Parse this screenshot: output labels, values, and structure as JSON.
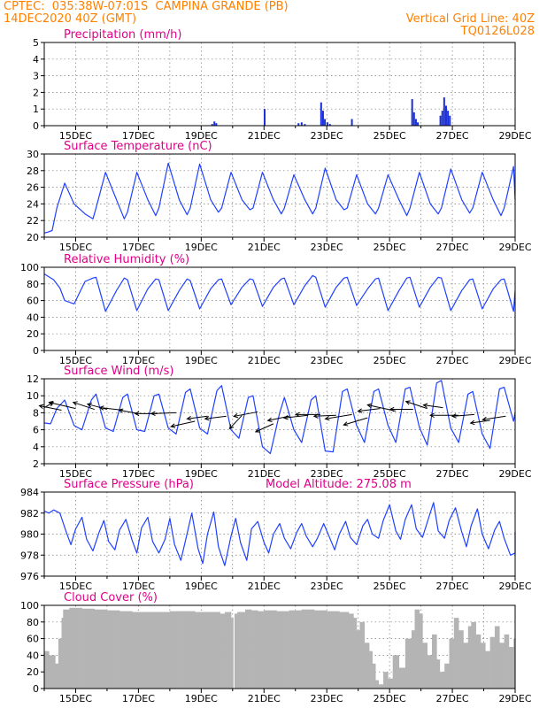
{
  "header": {
    "line1_left": "CPTEC:  035:38W-07:01S  CAMPINA GRANDE (PB)",
    "line2_left": "14DEC2020 40Z (GMT)",
    "line2_right": "Vertical Grid Line: 40Z",
    "line3_right": "TQ0126L028"
  },
  "colors": {
    "header_text": "#ff8000",
    "title_text": "#e0008a",
    "series_line": "#2040ff",
    "bar_fill": "#1a2fd8",
    "cloud_fill": "#b4b4b4",
    "wind_vector": "#000000"
  },
  "date_ticks": [
    "15DEC",
    "17DEC",
    "19DEC",
    "21DEC",
    "23DEC",
    "25DEC",
    "27DEC",
    "29DEC"
  ],
  "chart_data": [
    {
      "id": "precip",
      "type": "bar",
      "title": "Precipitation (mm/h)",
      "ylim": [
        0,
        5
      ],
      "yticks": [
        "0",
        "1",
        "2",
        "3",
        "4",
        "5"
      ],
      "x_days": [
        19.35,
        19.42,
        19.48,
        21.02,
        22.1,
        22.2,
        22.3,
        22.82,
        22.88,
        22.94,
        23.02,
        23.1,
        23.8,
        25.72,
        25.78,
        25.84,
        25.9,
        26.62,
        26.68,
        26.74,
        26.8,
        26.86,
        26.92
      ],
      "values": [
        0.1,
        0.25,
        0.15,
        1.0,
        0.15,
        0.2,
        0.1,
        1.4,
        0.9,
        0.4,
        0.2,
        0.1,
        0.4,
        1.6,
        0.8,
        0.4,
        0.2,
        0.6,
        0.9,
        1.7,
        1.2,
        0.9,
        0.6
      ],
      "grid": true
    },
    {
      "id": "temp",
      "type": "line",
      "title": "Surface Temperature (nC)",
      "ylim": [
        20,
        30
      ],
      "yticks": [
        "20",
        "22",
        "24",
        "26",
        "28",
        "30"
      ],
      "x_days": [
        14.0,
        14.1,
        14.25,
        14.4,
        14.65,
        14.95,
        15.3,
        15.55,
        15.65,
        15.95,
        16.3,
        16.55,
        16.65,
        16.95,
        17.3,
        17.55,
        17.65,
        17.95,
        18.3,
        18.55,
        18.65,
        18.95,
        19.3,
        19.55,
        19.65,
        19.95,
        20.3,
        20.55,
        20.65,
        20.95,
        21.3,
        21.55,
        21.65,
        21.95,
        22.3,
        22.55,
        22.65,
        22.95,
        23.3,
        23.55,
        23.65,
        23.95,
        24.3,
        24.55,
        24.65,
        24.95,
        25.3,
        25.55,
        25.65,
        25.95,
        26.3,
        26.55,
        26.65,
        26.95,
        27.3,
        27.55,
        27.65,
        27.95,
        28.3,
        28.55,
        28.65,
        28.95,
        29.1
      ],
      "values": [
        20.5,
        20.6,
        20.8,
        23.5,
        26.5,
        24.0,
        22.8,
        22.2,
        23.5,
        27.8,
        24.5,
        22.2,
        23.0,
        27.8,
        24.5,
        22.6,
        23.5,
        28.9,
        24.5,
        22.7,
        23.5,
        28.8,
        24.5,
        23.0,
        23.5,
        27.8,
        24.5,
        23.3,
        23.5,
        27.8,
        24.5,
        22.8,
        23.5,
        27.5,
        24.5,
        22.8,
        23.5,
        28.3,
        24.5,
        23.3,
        23.5,
        27.5,
        24.0,
        22.8,
        23.5,
        27.5,
        24.5,
        22.6,
        23.5,
        27.8,
        24.0,
        22.8,
        23.5,
        28.2,
        24.5,
        22.9,
        23.5,
        27.8,
        24.5,
        22.6,
        23.5,
        28.5,
        24.5
      ],
      "grid": true
    },
    {
      "id": "rh",
      "type": "line",
      "title": "Relative Humidity (%)",
      "ylim": [
        0,
        100
      ],
      "yticks": [
        "0",
        "20",
        "40",
        "60",
        "80",
        "100"
      ],
      "x_days": [
        14.0,
        14.3,
        14.5,
        14.65,
        14.95,
        15.3,
        15.55,
        15.65,
        15.95,
        16.3,
        16.55,
        16.65,
        16.95,
        17.3,
        17.55,
        17.65,
        17.95,
        18.3,
        18.55,
        18.65,
        18.95,
        19.3,
        19.55,
        19.65,
        19.95,
        20.3,
        20.55,
        20.65,
        20.95,
        21.3,
        21.55,
        21.65,
        21.95,
        22.3,
        22.55,
        22.65,
        22.95,
        23.3,
        23.55,
        23.65,
        23.95,
        24.3,
        24.55,
        24.65,
        24.95,
        25.3,
        25.55,
        25.65,
        25.95,
        26.3,
        26.55,
        26.65,
        26.95,
        27.3,
        27.55,
        27.65,
        27.95,
        28.3,
        28.55,
        28.65,
        28.95,
        29.1
      ],
      "values": [
        92,
        85,
        75,
        60,
        56,
        83,
        87,
        88,
        47,
        72,
        87,
        85,
        48,
        74,
        86,
        85,
        48,
        72,
        86,
        84,
        50,
        74,
        85,
        86,
        55,
        76,
        86,
        85,
        53,
        76,
        86,
        87,
        55,
        78,
        90,
        88,
        52,
        76,
        87,
        88,
        54,
        74,
        86,
        87,
        48,
        72,
        87,
        88,
        52,
        76,
        88,
        87,
        48,
        72,
        85,
        86,
        50,
        74,
        85,
        86,
        47,
        72
      ],
      "grid": true
    },
    {
      "id": "wind",
      "type": "line",
      "title": "Surface Wind (m/s)",
      "ylim": [
        2,
        12
      ],
      "yticks": [
        "2",
        "4",
        "6",
        "8",
        "10",
        "12"
      ],
      "x_days": [
        14.0,
        14.2,
        14.4,
        14.65,
        14.95,
        15.2,
        15.5,
        15.65,
        15.95,
        16.2,
        16.5,
        16.65,
        16.95,
        17.2,
        17.5,
        17.65,
        17.95,
        18.2,
        18.5,
        18.65,
        18.95,
        19.2,
        19.5,
        19.65,
        19.95,
        20.2,
        20.5,
        20.65,
        20.95,
        21.2,
        21.5,
        21.65,
        21.95,
        22.2,
        22.5,
        22.65,
        22.95,
        23.2,
        23.5,
        23.65,
        23.95,
        24.2,
        24.5,
        24.65,
        24.95,
        25.2,
        25.5,
        25.65,
        25.95,
        26.2,
        26.5,
        26.65,
        26.95,
        27.2,
        27.5,
        27.65,
        27.95,
        28.2,
        28.5,
        28.65,
        28.95,
        29.1
      ],
      "values": [
        6.8,
        6.7,
        8.5,
        9.5,
        6.5,
        6.0,
        9.5,
        10.2,
        6.2,
        5.8,
        9.8,
        10.2,
        6.0,
        5.8,
        10.0,
        10.2,
        6.2,
        5.5,
        10.4,
        10.8,
        6.2,
        5.5,
        10.6,
        11.2,
        6.0,
        5.0,
        9.8,
        10.0,
        4.0,
        3.2,
        8.0,
        9.8,
        6.0,
        4.5,
        9.5,
        10.0,
        3.5,
        3.4,
        10.5,
        10.8,
        6.5,
        4.5,
        10.5,
        10.8,
        6.5,
        4.5,
        10.8,
        11.0,
        6.3,
        4.2,
        11.5,
        11.8,
        6.2,
        4.5,
        10.2,
        10.5,
        5.5,
        3.8,
        10.8,
        11.0,
        7.0,
        8.0
      ],
      "grid": true,
      "vectors": [
        {
          "x_day": 14.0,
          "speed": 8.6,
          "dx": 10,
          "dy": -6
        },
        {
          "x_day": 14.55,
          "speed": 8.3,
          "dx": -25,
          "dy": -5
        },
        {
          "x_day": 15.0,
          "speed": 8.5,
          "dx": -30,
          "dy": -7
        },
        {
          "x_day": 15.6,
          "speed": 8.4,
          "dx": -24,
          "dy": -8
        },
        {
          "x_day": 16.0,
          "speed": 8.4,
          "dx": -22,
          "dy": -6
        },
        {
          "x_day": 16.5,
          "speed": 8.3,
          "dx": -26,
          "dy": -3
        },
        {
          "x_day": 17.0,
          "speed": 7.9,
          "dx": -22,
          "dy": -4
        },
        {
          "x_day": 17.6,
          "speed": 7.9,
          "dx": -25,
          "dy": 0
        },
        {
          "x_day": 18.2,
          "speed": 8.0,
          "dx": -28,
          "dy": 1
        },
        {
          "x_day": 18.8,
          "speed": 7.0,
          "dx": -27,
          "dy": 6
        },
        {
          "x_day": 19.2,
          "speed": 7.6,
          "dx": -23,
          "dy": 3
        },
        {
          "x_day": 19.8,
          "speed": 7.6,
          "dx": -24,
          "dy": 3
        },
        {
          "x_day": 20.3,
          "speed": 7.7,
          "dx": -14,
          "dy": 15
        },
        {
          "x_day": 20.8,
          "speed": 8.1,
          "dx": -27,
          "dy": 5
        },
        {
          "x_day": 21.3,
          "speed": 6.7,
          "dx": -20,
          "dy": 9
        },
        {
          "x_day": 21.8,
          "speed": 7.6,
          "dx": -24,
          "dy": 5
        },
        {
          "x_day": 22.4,
          "speed": 7.7,
          "dx": -27,
          "dy": 3
        },
        {
          "x_day": 22.8,
          "speed": 7.8,
          "dx": -28,
          "dy": 0
        },
        {
          "x_day": 23.3,
          "speed": 7.7,
          "dx": -25,
          "dy": 1
        },
        {
          "x_day": 23.8,
          "speed": 7.8,
          "dx": -30,
          "dy": 5
        },
        {
          "x_day": 24.3,
          "speed": 7.4,
          "dx": -27,
          "dy": 8
        },
        {
          "x_day": 24.7,
          "speed": 8.5,
          "dx": -25,
          "dy": 3
        },
        {
          "x_day": 25.2,
          "speed": 8.2,
          "dx": -32,
          "dy": -7
        },
        {
          "x_day": 25.75,
          "speed": 8.4,
          "dx": -26,
          "dy": 0
        },
        {
          "x_day": 26.2,
          "speed": 8.5,
          "dx": -24,
          "dy": -8
        },
        {
          "x_day": 26.7,
          "speed": 8.6,
          "dx": -22,
          "dy": -3
        },
        {
          "x_day": 27.2,
          "speed": 7.7,
          "dx": -32,
          "dy": 0
        },
        {
          "x_day": 27.7,
          "speed": 7.8,
          "dx": -25,
          "dy": 2
        },
        {
          "x_day": 28.2,
          "speed": 7.1,
          "dx": -22,
          "dy": 3
        },
        {
          "x_day": 28.7,
          "speed": 7.6,
          "dx": -26,
          "dy": 4
        }
      ]
    },
    {
      "id": "pres",
      "type": "line",
      "title": "Surface Pressure (hPa)",
      "annotation": "Model Altitude: 275.08 m",
      "ylim": [
        976,
        984
      ],
      "yticks": [
        "976",
        "978",
        "980",
        "982",
        "984"
      ],
      "x_days": [
        14.0,
        14.15,
        14.3,
        14.5,
        14.7,
        14.85,
        15.0,
        15.2,
        15.35,
        15.55,
        15.75,
        15.9,
        16.05,
        16.25,
        16.4,
        16.6,
        16.8,
        16.95,
        17.1,
        17.3,
        17.45,
        17.65,
        17.85,
        18.0,
        18.15,
        18.35,
        18.5,
        18.7,
        18.9,
        19.05,
        19.2,
        19.4,
        19.55,
        19.75,
        19.95,
        20.1,
        20.25,
        20.45,
        20.6,
        20.8,
        21.0,
        21.15,
        21.3,
        21.5,
        21.65,
        21.85,
        22.05,
        22.2,
        22.35,
        22.55,
        22.7,
        22.9,
        23.1,
        23.25,
        23.4,
        23.6,
        23.75,
        23.95,
        24.15,
        24.3,
        24.45,
        24.65,
        24.8,
        25.0,
        25.2,
        25.35,
        25.5,
        25.7,
        25.85,
        26.05,
        26.25,
        26.4,
        26.55,
        26.75,
        26.9,
        27.1,
        27.3,
        27.45,
        27.6,
        27.8,
        27.95,
        28.15,
        28.35,
        28.5,
        28.65,
        28.85,
        29.0,
        29.1
      ],
      "values": [
        982.2,
        982.0,
        982.3,
        982.0,
        980.2,
        979.0,
        980.5,
        981.6,
        979.5,
        978.4,
        980.2,
        981.3,
        979.3,
        978.5,
        980.4,
        981.4,
        979.4,
        978.2,
        980.6,
        981.6,
        979.3,
        978.2,
        979.5,
        981.5,
        979.0,
        977.5,
        979.4,
        982.0,
        978.6,
        977.2,
        980.0,
        982.1,
        978.8,
        977.0,
        979.8,
        981.5,
        979.2,
        977.5,
        980.5,
        981.2,
        979.2,
        978.2,
        980.0,
        981.0,
        979.6,
        978.6,
        980.2,
        981.0,
        979.8,
        978.8,
        979.6,
        981.0,
        979.6,
        978.5,
        980.0,
        981.2,
        979.7,
        979.0,
        980.8,
        981.4,
        980.0,
        979.6,
        981.3,
        982.8,
        980.3,
        979.5,
        981.4,
        982.8,
        980.5,
        979.7,
        981.6,
        983.0,
        980.3,
        979.6,
        981.3,
        982.5,
        980.2,
        978.8,
        980.8,
        982.4,
        980.0,
        978.6,
        980.4,
        981.2,
        979.6,
        978.0,
        978.2,
        980.2
      ],
      "grid": true
    },
    {
      "id": "cloud",
      "type": "area",
      "title": "Cloud Cover (%)",
      "ylim": [
        0,
        100
      ],
      "yticks": [
        "0",
        "20",
        "40",
        "60",
        "80",
        "100"
      ],
      "x_days": [
        14.0,
        14.15,
        14.35,
        14.45,
        14.55,
        14.6,
        14.8,
        15.2,
        15.6,
        16.0,
        16.4,
        16.8,
        17.2,
        17.6,
        18.0,
        18.4,
        18.8,
        19.2,
        19.6,
        19.75,
        19.95,
        20.02,
        20.06,
        20.15,
        20.4,
        20.6,
        20.8,
        21.0,
        21.4,
        21.8,
        22.2,
        22.6,
        23.0,
        23.4,
        23.7,
        23.85,
        23.95,
        24.05,
        24.2,
        24.35,
        24.45,
        24.55,
        24.65,
        24.8,
        24.95,
        25.1,
        25.3,
        25.5,
        25.7,
        25.8,
        25.95,
        26.05,
        26.2,
        26.35,
        26.5,
        26.6,
        26.75,
        26.9,
        27.05,
        27.2,
        27.35,
        27.5,
        27.6,
        27.75,
        27.9,
        28.05,
        28.2,
        28.35,
        28.5,
        28.65,
        28.8,
        28.95,
        29.1
      ],
      "values": [
        45,
        40,
        30,
        60,
        85,
        95,
        97,
        96,
        95,
        94,
        93,
        92,
        92,
        92,
        93,
        93,
        92,
        92,
        90,
        92,
        85,
        0,
        90,
        92,
        95,
        94,
        93,
        94,
        93,
        94,
        95,
        94,
        93,
        92,
        90,
        85,
        70,
        80,
        55,
        45,
        30,
        10,
        5,
        20,
        12,
        40,
        25,
        60,
        70,
        95,
        90,
        55,
        40,
        65,
        35,
        20,
        30,
        60,
        85,
        70,
        55,
        75,
        80,
        65,
        55,
        45,
        62,
        75,
        55,
        65,
        50,
        60,
        55
      ],
      "grid": true
    }
  ]
}
